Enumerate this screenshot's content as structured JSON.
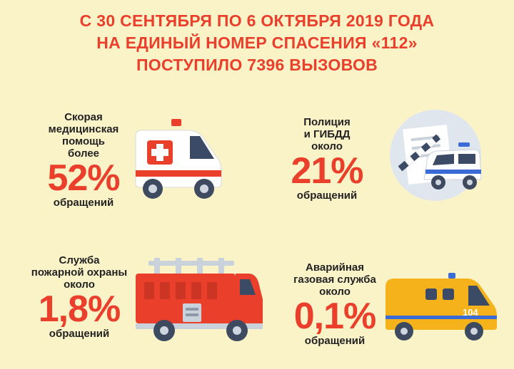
{
  "header": {
    "line1": "С 30 СЕНТЯБРЯ ПО 6 ОКТЯБРЯ 2019 ГОДА",
    "line2": "НА ЕДИНЫЙ НОМЕР СПАСЕНИЯ «112»",
    "line3": "ПОСТУПИЛО 7396 ВЫЗОВОВ"
  },
  "services": [
    {
      "label_lines": [
        "Скорая",
        "медицинская",
        "помощь",
        "более"
      ],
      "percent": "52%",
      "suffix": "обращений",
      "icon": "ambulance-icon"
    },
    {
      "label_lines": [
        "Полиция",
        "и ГИБДД",
        "около"
      ],
      "percent": "21%",
      "suffix": "обращений",
      "icon": "police-car-icon"
    },
    {
      "label_lines": [
        "Служба",
        "пожарной охраны",
        "около"
      ],
      "percent": "1,8%",
      "suffix": "обращений",
      "icon": "fire-truck-icon"
    },
    {
      "label_lines": [
        "Аварийная",
        "газовая служба",
        "около"
      ],
      "percent": "0,1%",
      "suffix": "обращений",
      "icon": "gas-van-icon",
      "van_number": "104"
    }
  ],
  "colors": {
    "accent": "#ea3f2b",
    "background": "#fbf3c8",
    "text": "#222222"
  }
}
